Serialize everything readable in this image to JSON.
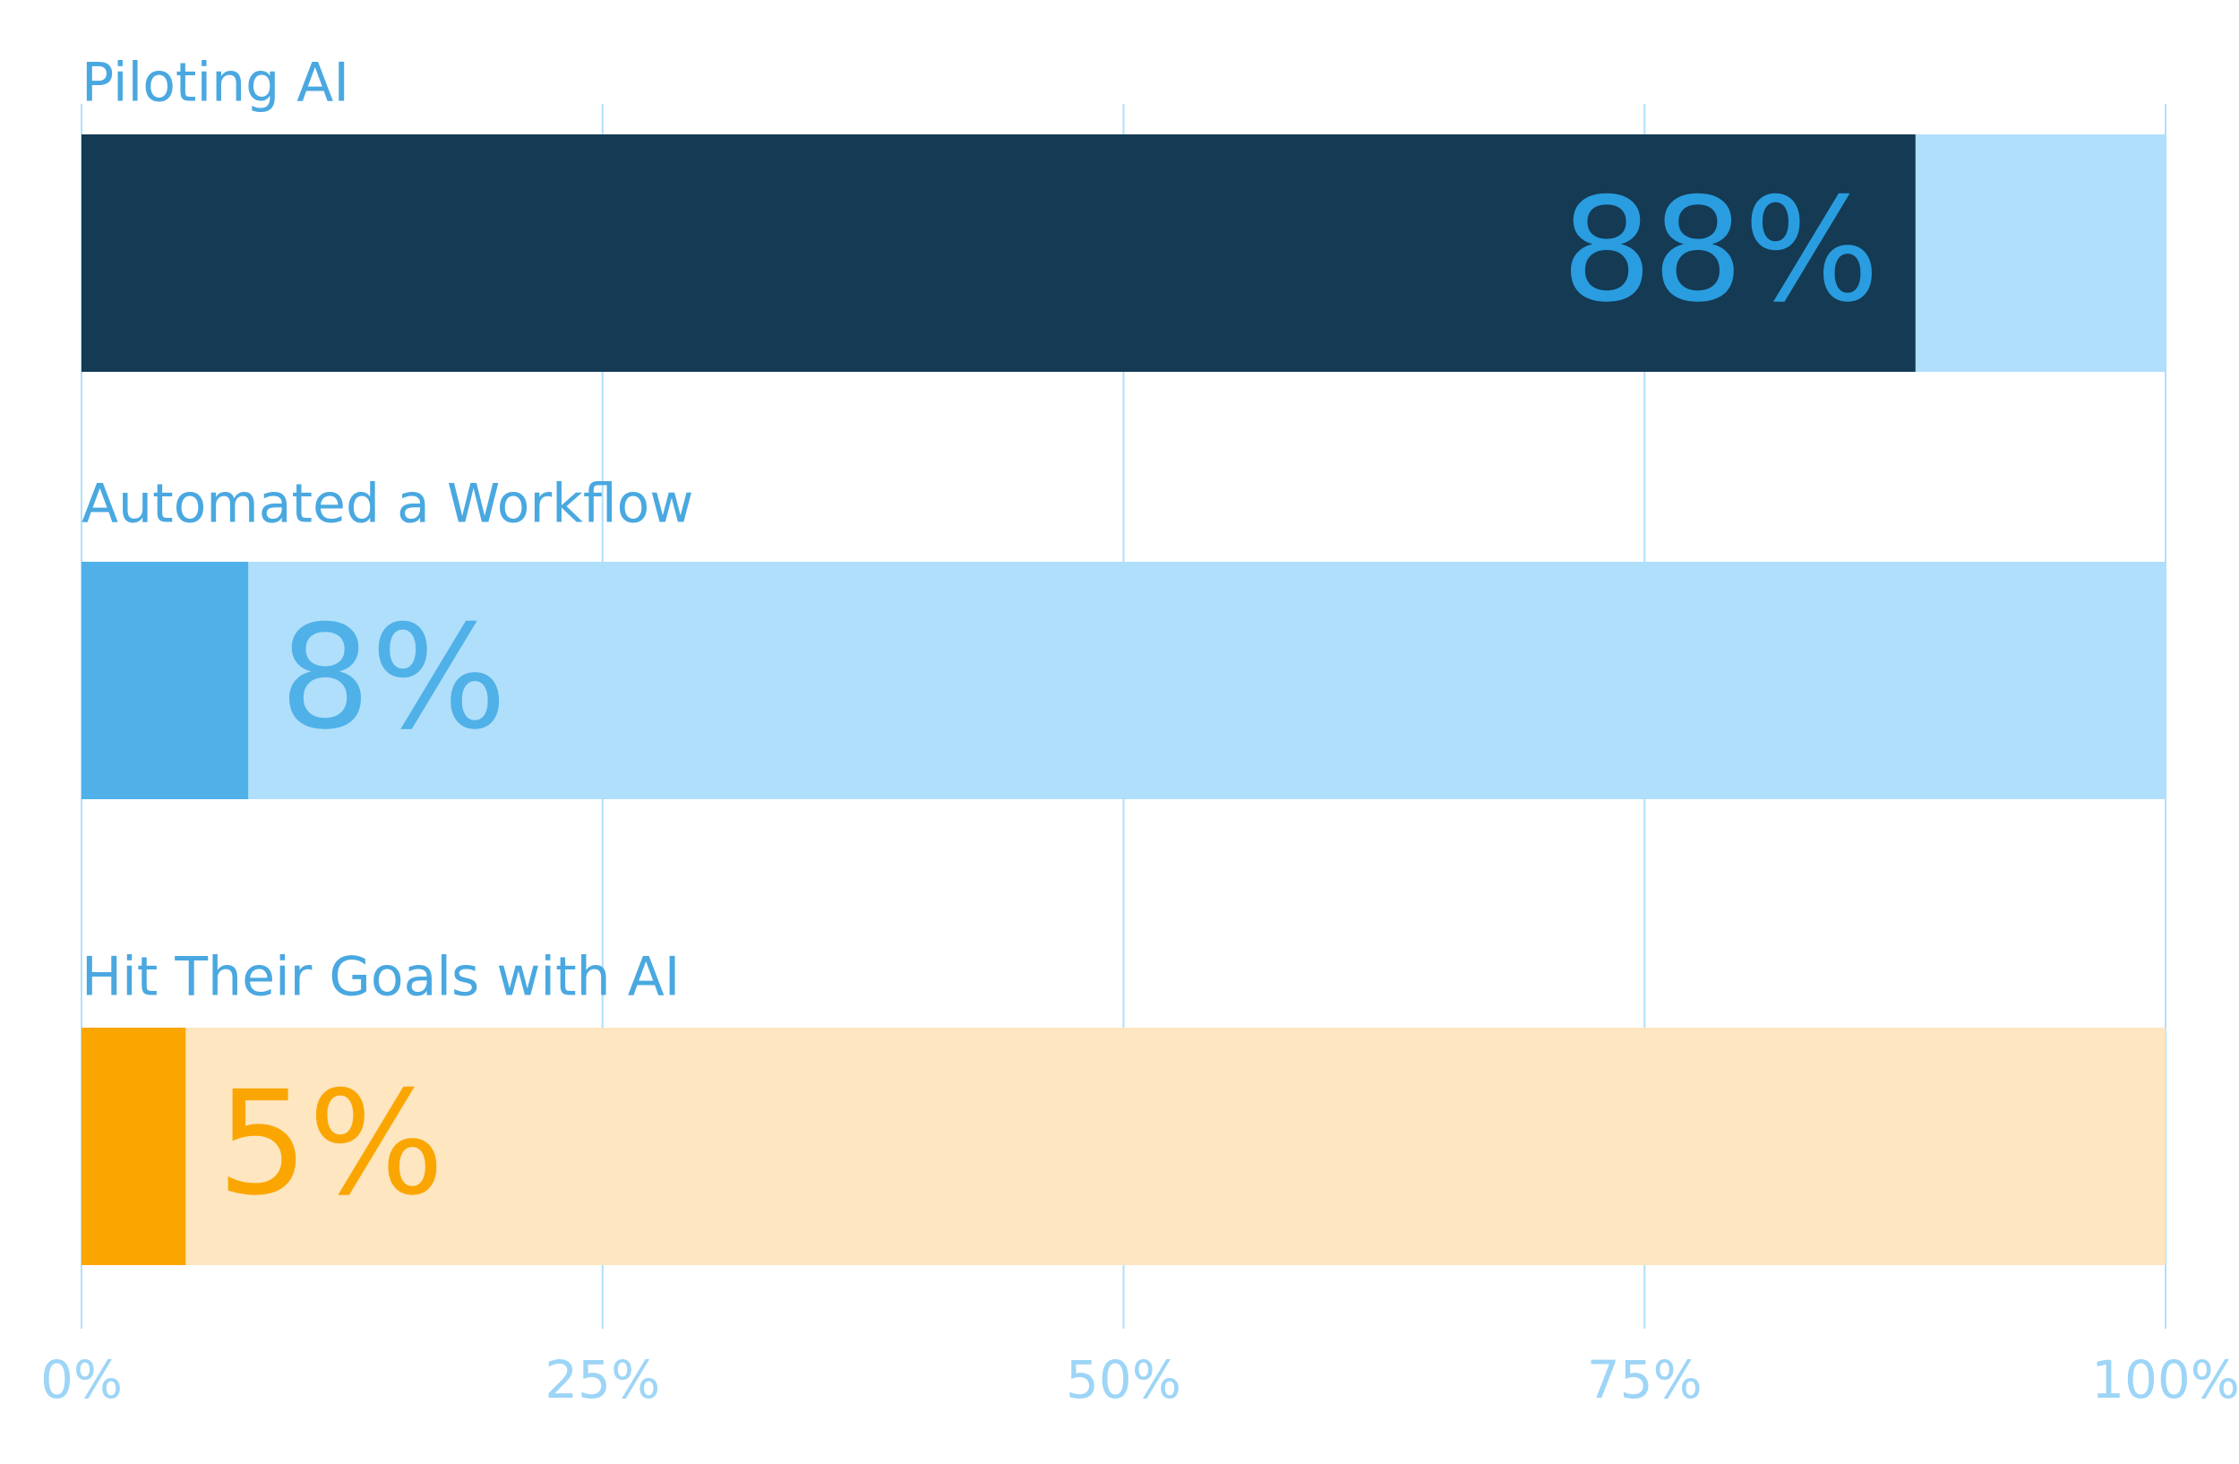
{
  "chart_data": {
    "type": "bar",
    "categories": [
      "Piloting AI",
      "Automated a Workflow",
      "Hit Their Goals with AI"
    ],
    "values": [
      88,
      8,
      5
    ],
    "value_labels": [
      "88%",
      "8%",
      "5%"
    ],
    "bar_colors": [
      "#143a54",
      "#4fb1e8",
      "#fba600"
    ],
    "track_colors": [
      "#b0dffb",
      "#b0dffb",
      "#fde6c0"
    ],
    "label_colors": [
      "#2a9de0",
      "#4fb1e8",
      "#fba600"
    ],
    "xlim": [
      0,
      100
    ],
    "xticks": [
      {
        "value": 0,
        "label": "0%"
      },
      {
        "value": 25,
        "label": "25%"
      },
      {
        "value": 50,
        "label": "50%"
      },
      {
        "value": 75,
        "label": "75%"
      },
      {
        "value": 100,
        "label": "100%"
      }
    ],
    "grid": true
  }
}
